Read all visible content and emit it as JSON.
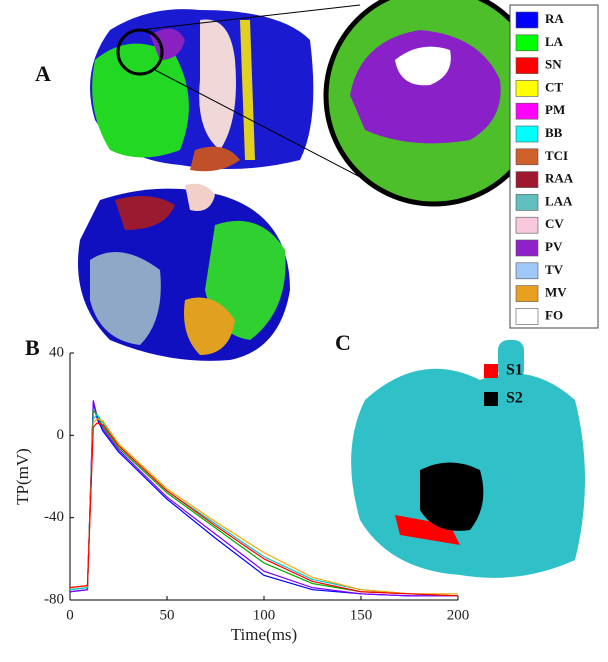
{
  "panel_labels": [
    "A",
    "B",
    "C"
  ],
  "tissue_legend": [
    {
      "name": "RA",
      "color": "#0000ff"
    },
    {
      "name": "LA",
      "color": "#00ff00"
    },
    {
      "name": "SN",
      "color": "#ff0000"
    },
    {
      "name": "CT",
      "color": "#ffff00"
    },
    {
      "name": "PM",
      "color": "#ff00ff"
    },
    {
      "name": "BB",
      "color": "#00ffff"
    },
    {
      "name": "TCI",
      "color": "#d0602a"
    },
    {
      "name": "RAA",
      "color": "#a01830"
    },
    {
      "name": "LAA",
      "color": "#60c0c0"
    },
    {
      "name": "CV",
      "color": "#f8c8dc"
    },
    {
      "name": "PV",
      "color": "#9020c8"
    },
    {
      "name": "TV",
      "color": "#a0c8f8"
    },
    {
      "name": "MV",
      "color": "#e8a020"
    },
    {
      "name": "FO",
      "color": "#ffffff"
    }
  ],
  "stim_legend": [
    {
      "name": "S1",
      "color": "#ff0000"
    },
    {
      "name": "S2",
      "color": "#000000"
    }
  ],
  "chart_data": {
    "type": "line",
    "xlabel": "Time(ms)",
    "ylabel": "TP(mV)",
    "xlim": [
      0,
      200
    ],
    "ylim": [
      -80,
      40
    ],
    "xticks": [
      0,
      50,
      100,
      150,
      200
    ],
    "yticks": [
      -80,
      -40,
      0,
      40
    ],
    "x": [
      0,
      9,
      12,
      14,
      17,
      25,
      50,
      75,
      100,
      125,
      150,
      175,
      200
    ],
    "series": [
      {
        "color": "#0000ff",
        "values": [
          -76,
          -75,
          16,
          8,
          2,
          -8,
          -31,
          -50,
          -68,
          -75,
          -77,
          -78,
          -78
        ]
      },
      {
        "color": "#8000ff",
        "values": [
          -76,
          -75,
          17,
          9,
          3,
          -7,
          -30,
          -48,
          -66,
          -74,
          -77,
          -78,
          -78
        ]
      },
      {
        "color": "#00aa00",
        "values": [
          -75,
          -74,
          12,
          10,
          4,
          -6,
          -28,
          -45,
          -62,
          -72,
          -76,
          -77,
          -78
        ]
      },
      {
        "color": "#00c8c8",
        "values": [
          -75,
          -74,
          8,
          10,
          6,
          -5,
          -27,
          -43,
          -59,
          -70,
          -75,
          -77,
          -78
        ]
      },
      {
        "color": "#ffa500",
        "values": [
          -74,
          -73,
          6,
          8,
          7,
          -4,
          -26,
          -42,
          -57,
          -69,
          -75,
          -77,
          -77
        ]
      },
      {
        "color": "#ff0000",
        "values": [
          -74,
          -73,
          4,
          6,
          5,
          -5,
          -27,
          -44,
          -60,
          -71,
          -76,
          -77,
          -78
        ]
      }
    ]
  }
}
